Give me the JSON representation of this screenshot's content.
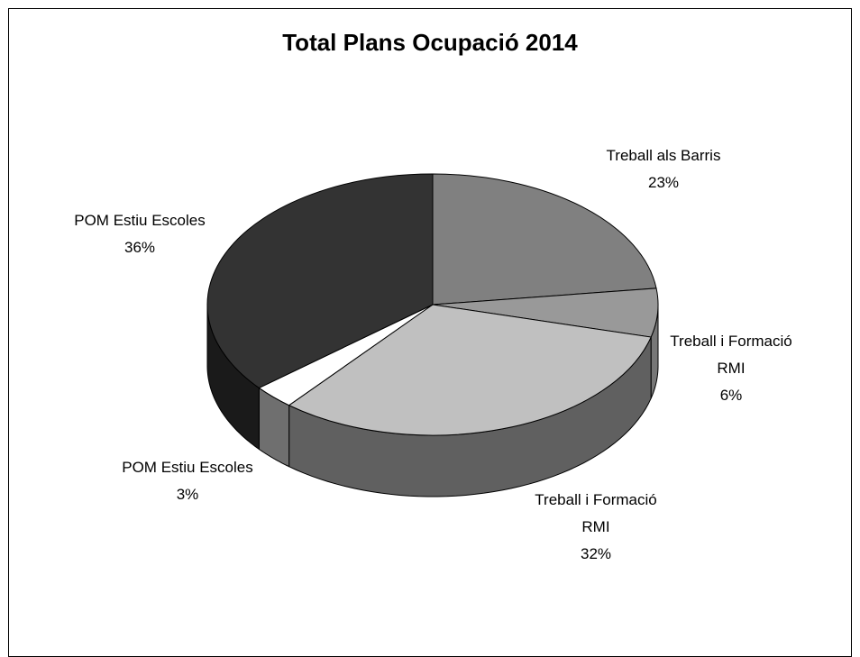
{
  "chart_data": {
    "type": "pie",
    "title": "Total Plans Ocupació 2014",
    "categories": [
      "Treball als Barris",
      "Treball i Formació RMI",
      "Treball i Formació RMI",
      "POM Estiu Escoles",
      "POM Estiu Escoles"
    ],
    "values": [
      23,
      6,
      32,
      3,
      36
    ],
    "units": "%",
    "colors": {
      "top": [
        "#808080",
        "#999999",
        "#c0c0c0",
        "#ffffff",
        "#333333"
      ],
      "side": [
        "#5f5f5f",
        "#777777",
        "#606060",
        "#6f6f6f",
        "#1a1a1a"
      ]
    },
    "labels": [
      {
        "lines": [
          "Treball als Barris",
          "23%"
        ]
      },
      {
        "lines": [
          "Treball i Formació",
          "RMI",
          "6%"
        ]
      },
      {
        "lines": [
          "Treball i Formació",
          "RMI",
          "32%"
        ]
      },
      {
        "lines": [
          "POM Estiu Escoles",
          "3%"
        ]
      },
      {
        "lines": [
          "POM Estiu Escoles",
          "36%"
        ]
      }
    ],
    "legend": "none",
    "grid": false
  }
}
